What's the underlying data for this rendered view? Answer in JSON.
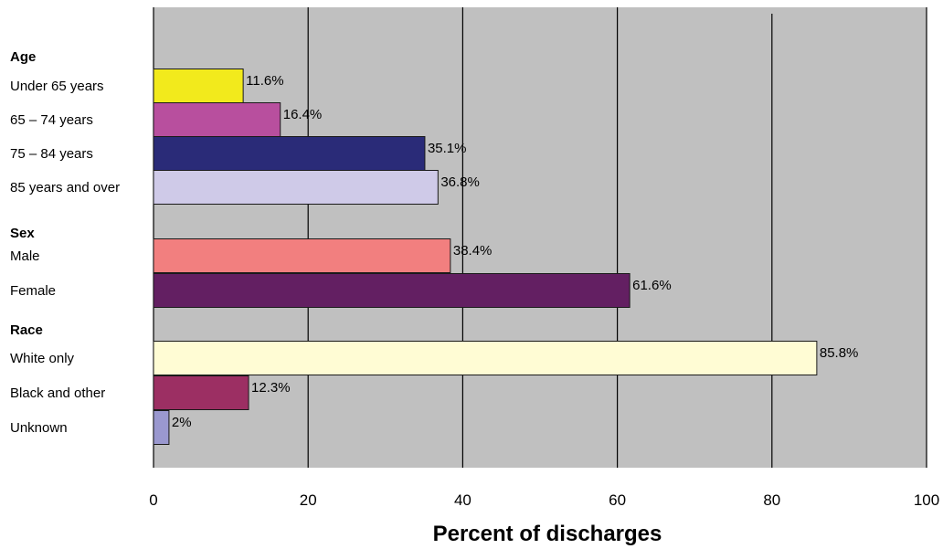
{
  "chart_data": {
    "type": "bar",
    "orientation": "horizontal",
    "title": "",
    "xlabel": "Percent of discharges",
    "ylabel": "",
    "xlim": [
      0,
      100
    ],
    "x_ticks": [
      "0",
      "20",
      "40",
      "60",
      "80",
      "100"
    ],
    "grid": true,
    "legend": "none",
    "background_color": "#c0c0c0",
    "groups": [
      {
        "name": "Age",
        "bars": [
          {
            "label": "Under 65 years",
            "value": 11.6,
            "value_label": "11.6%",
            "color": "#f2ea1c"
          },
          {
            "label": "65 – 74 years",
            "value": 16.4,
            "value_label": "16.4%",
            "color": "#b84f9e"
          },
          {
            "label": "75 – 84 years",
            "value": 35.1,
            "value_label": "35.1%",
            "color": "#2a2b78"
          },
          {
            "label": "85 years and over",
            "value": 36.8,
            "value_label": "36.8%",
            "color": "#cfcae8"
          }
        ]
      },
      {
        "name": "Sex",
        "bars": [
          {
            "label": "Male",
            "value": 38.4,
            "value_label": "38.4%",
            "color": "#f27f7f"
          },
          {
            "label": "Female",
            "value": 61.6,
            "value_label": "61.6%",
            "color": "#631f62"
          }
        ]
      },
      {
        "name": "Race",
        "bars": [
          {
            "label": "White only",
            "value": 85.8,
            "value_label": "85.8%",
            "color": "#fffcd4"
          },
          {
            "label": "Black and other",
            "value": 12.3,
            "value_label": "12.3%",
            "color": "#9c2f63"
          },
          {
            "label": "Unknown",
            "value": 2,
            "value_label": "2%",
            "color": "#9a98cf"
          }
        ]
      }
    ]
  }
}
